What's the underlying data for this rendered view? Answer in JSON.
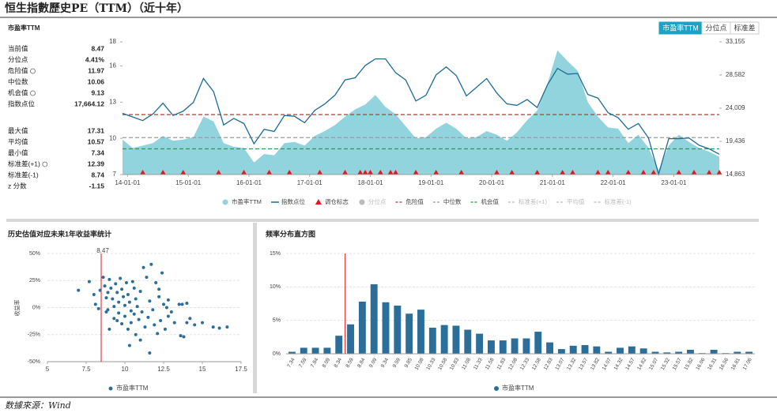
{
  "title": "恒生指數歷史PE（TTM）（近十年）",
  "source": "数據來源：Wind",
  "buttons": [
    "市盈率TTM",
    "分位点",
    "标准差"
  ],
  "active_button": 0,
  "chart_data": [
    {
      "type": "combo",
      "title": "市盈率TTM",
      "x": [
        "13-12-01",
        "14-02-01",
        "14-04-01",
        "14-06-01",
        "14-08-01",
        "14-10-01",
        "14-12-01",
        "15-02-01",
        "15-04-01",
        "15-06-01",
        "15-08-01",
        "15-10-01",
        "15-12-01",
        "16-02-01",
        "16-04-01",
        "16-06-01",
        "16-08-01",
        "16-10-01",
        "16-12-01",
        "17-02-01",
        "17-04-01",
        "17-06-01",
        "17-08-01",
        "17-10-01",
        "17-12-01",
        "18-02-01",
        "18-04-01",
        "18-06-01",
        "18-08-01",
        "18-10-01",
        "18-12-01",
        "19-02-01",
        "19-04-01",
        "19-06-01",
        "19-08-01",
        "19-10-01",
        "19-12-01",
        "20-02-01",
        "20-04-01",
        "20-06-01",
        "20-08-01",
        "20-10-01",
        "20-12-01",
        "21-02-01",
        "21-04-01",
        "21-06-01",
        "21-08-01",
        "21-10-01",
        "21-12-01",
        "22-02-01",
        "22-04-01",
        "22-06-01",
        "22-08-01",
        "22-10-01",
        "22-12-01",
        "23-02-01",
        "23-04-01",
        "23-06-01",
        "23-08-01",
        "23-10-01"
      ],
      "series": [
        {
          "name": "市盈率TTM",
          "type": "area",
          "color": "#92d4dd",
          "values": [
            9.9,
            9.2,
            9.4,
            9.6,
            10.2,
            9.8,
            9.9,
            10.1,
            11.8,
            11.4,
            9.6,
            9.3,
            9.2,
            8.0,
            8.7,
            8.6,
            9.6,
            9.7,
            9.4,
            10.2,
            10.6,
            11.1,
            11.8,
            12.4,
            12.8,
            13.6,
            12.6,
            12.0,
            11.0,
            10.0,
            10.1,
            10.8,
            11.3,
            10.8,
            10.0,
            10.1,
            10.6,
            10.3,
            9.8,
            10.5,
            11.5,
            12.3,
            14.5,
            17.3,
            16.4,
            15.6,
            13.0,
            11.8,
            10.9,
            10.8,
            9.6,
            10.3,
            9.2,
            7.34,
            9.4,
            10.3,
            9.7,
            9.2,
            8.9,
            8.47
          ]
        },
        {
          "name": "指数点位",
          "type": "line",
          "axis": "y2",
          "color": "#1c6b96",
          "values": [
            23300,
            22800,
            22300,
            23200,
            24700,
            23000,
            23600,
            24800,
            28100,
            26300,
            21700,
            22600,
            21900,
            19100,
            21100,
            20800,
            23000,
            22900,
            22000,
            23700,
            24600,
            25800,
            27900,
            28200,
            29900,
            30800,
            30800,
            28900,
            27900,
            25000,
            25800,
            28600,
            29700,
            28500,
            25700,
            26900,
            28100,
            26100,
            24600,
            24400,
            25200,
            24100,
            27200,
            29500,
            28700,
            28800,
            25900,
            25400,
            23400,
            22700,
            21100,
            21900,
            19900,
            14900,
            19800,
            19800,
            19900,
            18900,
            18400,
            17664.12
          ]
        }
      ],
      "rebalance": {
        "name": "调仓标志",
        "color": "#e0191f",
        "x": [
          "14-04-01",
          "14-08-01",
          "14-12-01",
          "15-07-01",
          "15-12-01",
          "16-05-01",
          "16-09-01",
          "17-03-01",
          "17-08-01",
          "17-11-01",
          "17-12-01",
          "18-01-01",
          "18-03-01",
          "18-05-01",
          "18-06-01",
          "18-10-01",
          "19-02-01",
          "19-07-01",
          "20-02-01",
          "20-05-01",
          "20-10-01",
          "21-03-01",
          "21-05-01",
          "21-10-01",
          "21-12-01",
          "22-04-01",
          "22-07-01",
          "22-09-01",
          "23-02-01",
          "23-05-01",
          "23-08-01",
          "23-10-01"
        ]
      },
      "stats": [
        {
          "name": "当前值",
          "value": 8.47
        },
        {
          "name": "分位点",
          "value": 4.41,
          "label": "4.41%"
        },
        {
          "name": "危险值",
          "value": 11.97,
          "line_color": "#d42a2a",
          "line_visible": true
        },
        {
          "name": "中位数",
          "value": 10.06,
          "line_color": "#999999",
          "line_visible": true
        },
        {
          "name": "机会值",
          "value": 9.13,
          "line_color": "#2a9a4a",
          "line_visible": true
        },
        {
          "name": "指数点位",
          "value": 17664.12,
          "label": "17,664.12"
        },
        {
          "name": "最大值",
          "value": 17.31
        },
        {
          "name": "平均值",
          "value": 10.57,
          "line_color": "#bbbbbb",
          "line_visible": false
        },
        {
          "name": "最小值",
          "value": 7.34
        },
        {
          "name": "标准差(+1)",
          "value": 12.39,
          "line_color": "#bbbbbb",
          "line_visible": false
        },
        {
          "name": "标准差(-1)",
          "value": 8.74,
          "line_color": "#bbbbbb",
          "line_visible": false
        },
        {
          "name": "z 分数",
          "value": -1.15
        }
      ],
      "ylim": [
        7,
        18
      ],
      "yticks": [
        7,
        10,
        13,
        16,
        18
      ],
      "y2lim": [
        14863,
        33155
      ],
      "y2ticks": [
        {
          "value": 14863,
          "label": "14,863"
        },
        {
          "value": 19436,
          "label": "19,436"
        },
        {
          "value": 24009,
          "label": "24,009"
        },
        {
          "value": 28582,
          "label": "28,582"
        },
        {
          "value": 33155,
          "label": "33,155"
        }
      ],
      "xticks": [
        "14-01-01",
        "15-01-01",
        "16-01-01",
        "17-01-01",
        "18-01-01",
        "19-01-01",
        "20-01-01",
        "21-01-01",
        "22-01-01",
        "23-01-01"
      ]
    },
    {
      "type": "scatter",
      "title": "历史估值对应未来1年收益率统计",
      "y_label": "收益率",
      "series_name": "市盈率TTM",
      "color": "#2b6e99",
      "marker_color": "#e0191f",
      "x": [
        7.0,
        7.7,
        8.0,
        8.1,
        8.4,
        8.6,
        8.7,
        8.8,
        8.9,
        9.0,
        9.1,
        9.2,
        9.3,
        9.3,
        9.4,
        9.5,
        9.6,
        9.6,
        9.7,
        9.8,
        9.8,
        9.9,
        10.0,
        10.0,
        10.1,
        10.2,
        10.2,
        10.3,
        10.4,
        10.4,
        10.5,
        10.6,
        10.7,
        10.7,
        10.8,
        10.9,
        11.0,
        11.0,
        11.1,
        11.2,
        11.3,
        11.4,
        11.5,
        11.6,
        11.7,
        11.8,
        11.9,
        12.0,
        12.1,
        12.2,
        12.3,
        12.4,
        12.5,
        12.6,
        12.7,
        12.8,
        13.0,
        13.2,
        13.5,
        13.6,
        13.8,
        14.0,
        14.2,
        14.5,
        15.0,
        15.7,
        16.1,
        16.6,
        13.7,
        14.0,
        11.6,
        10.3,
        9.0,
        8.8,
        9.5,
        12.2,
        12.8,
        8.3,
        8.9,
        10.6
      ],
      "y": [
        16,
        24,
        12,
        3,
        16,
        28,
        20,
        9,
        -2,
        26,
        18,
        8,
        1,
        -10,
        22,
        14,
        5,
        -5,
        27,
        17,
        -15,
        10,
        2,
        -8,
        23,
        -20,
        12,
        5,
        -3,
        -14,
        24,
        -6,
        8,
        -25,
        1,
        -11,
        15,
        -30,
        -4,
        37,
        -18,
        28,
        -9,
        6,
        40,
        -2,
        -16,
        23,
        -24,
        10,
        -12,
        32,
        3,
        -20,
        0,
        -8,
        -4,
        -14,
        3,
        -26,
        -27,
        -14,
        -10,
        -16,
        -14,
        -18,
        -19,
        -18,
        3,
        4,
        -42,
        -35,
        -20,
        -4,
        -12,
        17,
        7,
        -1,
        14,
        18
      ],
      "xlim": [
        5,
        17.5
      ],
      "xticks": [
        5,
        7.5,
        10,
        12.5,
        15,
        17.5
      ],
      "ylim": [
        -50,
        50
      ],
      "yticks": [
        {
          "value": -50,
          "label": "-50%"
        },
        {
          "value": -25,
          "label": "-25%"
        },
        {
          "value": 0,
          "label": "0%"
        },
        {
          "value": 25,
          "label": "25%"
        },
        {
          "value": 50,
          "label": "50%"
        }
      ]
    },
    {
      "type": "bar",
      "title": "频率分布直方图",
      "series_name": "市盈率TTM",
      "color": "#2b6e99",
      "marker_color": "#e0191f",
      "categories": [
        "7.34",
        "7.59",
        "7.84",
        "8.09",
        "8.34",
        "8.59",
        "8.84",
        "9.09",
        "9.34",
        "9.59",
        "9.85",
        "10.08",
        "10.33",
        "10.58",
        "10.83",
        "11.08",
        "11.33",
        "11.58",
        "11.83",
        "12.08",
        "12.33",
        "12.58",
        "12.83",
        "13.07",
        "13.32",
        "13.57",
        "13.82",
        "14.07",
        "14.32",
        "14.57",
        "14.82",
        "15.07",
        "15.32",
        "15.57",
        "15.82",
        "16.06",
        "16.31",
        "16.56",
        "16.81",
        "17.06"
      ],
      "values": [
        0.3,
        0.9,
        0.9,
        0.9,
        2.7,
        4.4,
        7.8,
        10.4,
        7.7,
        7.2,
        6.0,
        6.6,
        3.9,
        4.3,
        4.2,
        3.6,
        3.0,
        2.0,
        2.0,
        2.3,
        2.3,
        3.3,
        1.7,
        0.7,
        1.2,
        1.3,
        1.1,
        0.3,
        0.9,
        1.1,
        0.8,
        0.3,
        0.2,
        0.3,
        0.6,
        0.1,
        0.6,
        0.1,
        0.3,
        0.3
      ],
      "ylim": [
        0,
        15
      ],
      "yticks": [
        {
          "value": 0,
          "label": "0%"
        },
        {
          "value": 5,
          "label": "5%"
        },
        {
          "value": 10,
          "label": "10%"
        },
        {
          "value": 15,
          "label": "15%"
        }
      ]
    }
  ]
}
